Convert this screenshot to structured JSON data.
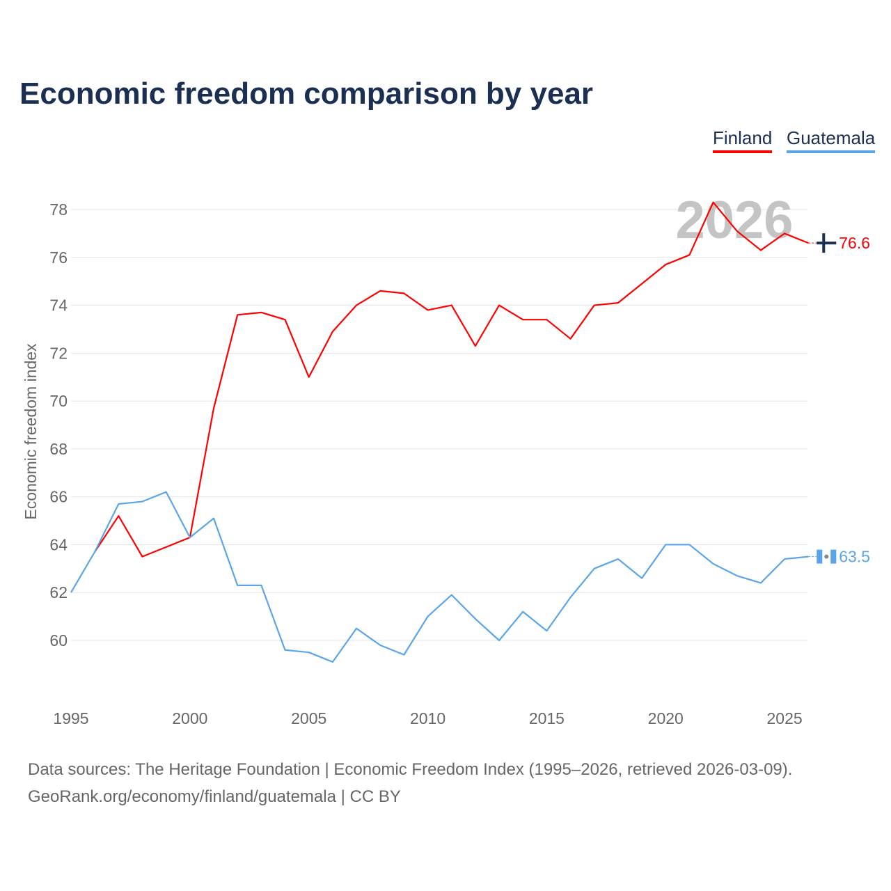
{
  "title": "Economic freedom comparison by year",
  "footer": {
    "line1": "Data sources: The Heritage Foundation | Economic Freedom Index (1995–2026, retrieved 2026-03-09).",
    "line2": "GeoRank.org/economy/finland/guatemala | CC BY"
  },
  "chart_data": {
    "type": "line",
    "title": "Economic freedom comparison by year",
    "ylabel": "Economic freedom index",
    "xlabel": "",
    "ylim": [
      58,
      79
    ],
    "xlim": [
      1995,
      2026
    ],
    "yticks": [
      60,
      62,
      64,
      66,
      68,
      70,
      72,
      74,
      76,
      78
    ],
    "xticks": [
      1995,
      2000,
      2005,
      2010,
      2015,
      2020,
      2025
    ],
    "watermark_year": "2026",
    "legend": "top-right",
    "series": [
      {
        "name": "Finland",
        "color": "#ff0000",
        "end_label": "76.6",
        "x": [
          1996,
          1997,
          1998,
          1999,
          2000,
          2001,
          2002,
          2003,
          2004,
          2005,
          2006,
          2007,
          2008,
          2009,
          2010,
          2011,
          2012,
          2013,
          2014,
          2015,
          2016,
          2017,
          2018,
          2019,
          2020,
          2021,
          2022,
          2023,
          2024,
          2025,
          2026
        ],
        "values": [
          63.7,
          65.2,
          63.5,
          63.9,
          64.3,
          69.7,
          73.6,
          73.7,
          73.4,
          71.0,
          72.9,
          74.0,
          74.6,
          74.5,
          73.8,
          74.0,
          72.3,
          74.0,
          73.4,
          73.4,
          72.6,
          74.0,
          74.1,
          74.9,
          75.7,
          76.1,
          78.3,
          77.1,
          76.3,
          77.0,
          76.6
        ]
      },
      {
        "name": "Guatemala",
        "color": "#5aa5ea",
        "end_label": "63.5",
        "x": [
          1995,
          1996,
          1997,
          1998,
          1999,
          2000,
          2001,
          2002,
          2003,
          2004,
          2005,
          2006,
          2007,
          2008,
          2009,
          2010,
          2011,
          2012,
          2013,
          2014,
          2015,
          2016,
          2017,
          2018,
          2019,
          2020,
          2021,
          2022,
          2023,
          2024,
          2025,
          2026
        ],
        "values": [
          62.0,
          63.7,
          65.7,
          65.8,
          66.2,
          64.3,
          65.1,
          62.3,
          62.3,
          59.6,
          59.5,
          59.1,
          60.5,
          59.8,
          59.4,
          61.0,
          61.9,
          60.9,
          60.0,
          61.2,
          60.4,
          61.8,
          63.0,
          63.4,
          62.6,
          64.0,
          64.0,
          63.2,
          62.7,
          62.4,
          63.4,
          63.5
        ]
      }
    ]
  }
}
